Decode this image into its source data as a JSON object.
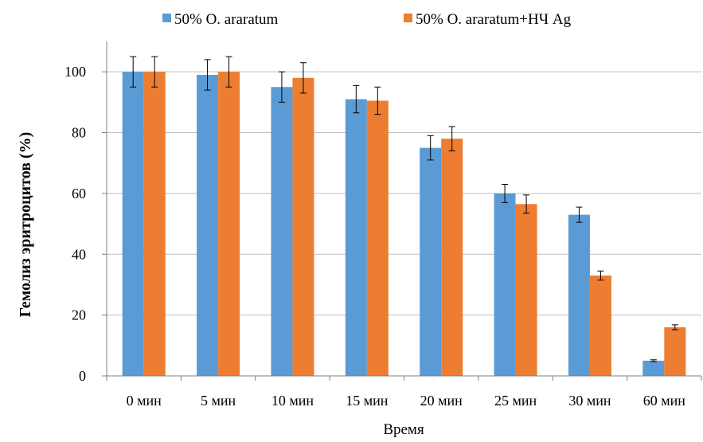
{
  "chart_data": {
    "type": "bar",
    "categories": [
      "0 мин",
      "5 мин",
      "10 мин",
      "15 мин",
      "20 мин",
      "25 мин",
      "30 мин",
      "60 мин"
    ],
    "series": [
      {
        "name": "50% O. araratum",
        "color": "#5b9bd5",
        "values": [
          100,
          99,
          95,
          91,
          75,
          60,
          53,
          5
        ],
        "errors": [
          5,
          5,
          5,
          4.5,
          4,
          3,
          2.5,
          0.3
        ]
      },
      {
        "name": "50% O. araratum+НЧ Ag",
        "color": "#ed7d31",
        "values": [
          100,
          100,
          98,
          90.5,
          78,
          56.5,
          33,
          16
        ],
        "errors": [
          5,
          5,
          5,
          4.5,
          4,
          3,
          1.5,
          0.8
        ]
      }
    ],
    "xlabel": "Время",
    "ylabel": "Гемолиз эритроцитов (%)",
    "ylim": [
      0,
      110
    ],
    "yticks": [
      "0",
      "20",
      "40",
      "60",
      "80",
      "100"
    ],
    "grid": true,
    "legend_position": "top"
  }
}
